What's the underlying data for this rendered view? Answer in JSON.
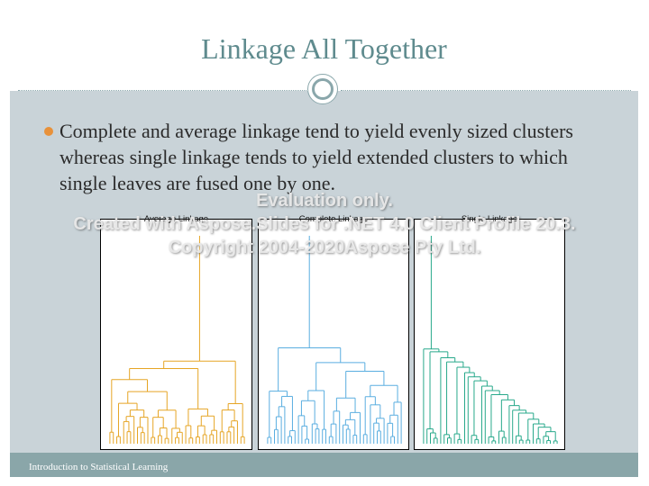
{
  "slide": {
    "title": "Linkage All Together",
    "bullet": "Complete and average linkage tend to yield evenly sized clusters whereas single linkage tends to yield extended clusters to which single leaves are fused one by one.",
    "footer": "Introduction to Statistical Learning"
  },
  "figure": {
    "panels": [
      {
        "title": "Average Linkage",
        "color": "#e6a525"
      },
      {
        "title": "Complete Linkage",
        "color": "#5aaee0"
      },
      {
        "title": "Single Linkage",
        "color": "#28a98b"
      }
    ]
  },
  "watermark": {
    "line1": "Evaluation only.",
    "line2": "Created with Aspose.Slides for .NET 4.0 Client Profile 20.3.",
    "line3": "Copyright 2004-2020Aspose Pty Ltd."
  },
  "colors": {
    "title": "#5f8b8e",
    "background": "#c9d3d8",
    "bullet": "#e8913a",
    "footer_bar": "#8aa6a9"
  }
}
